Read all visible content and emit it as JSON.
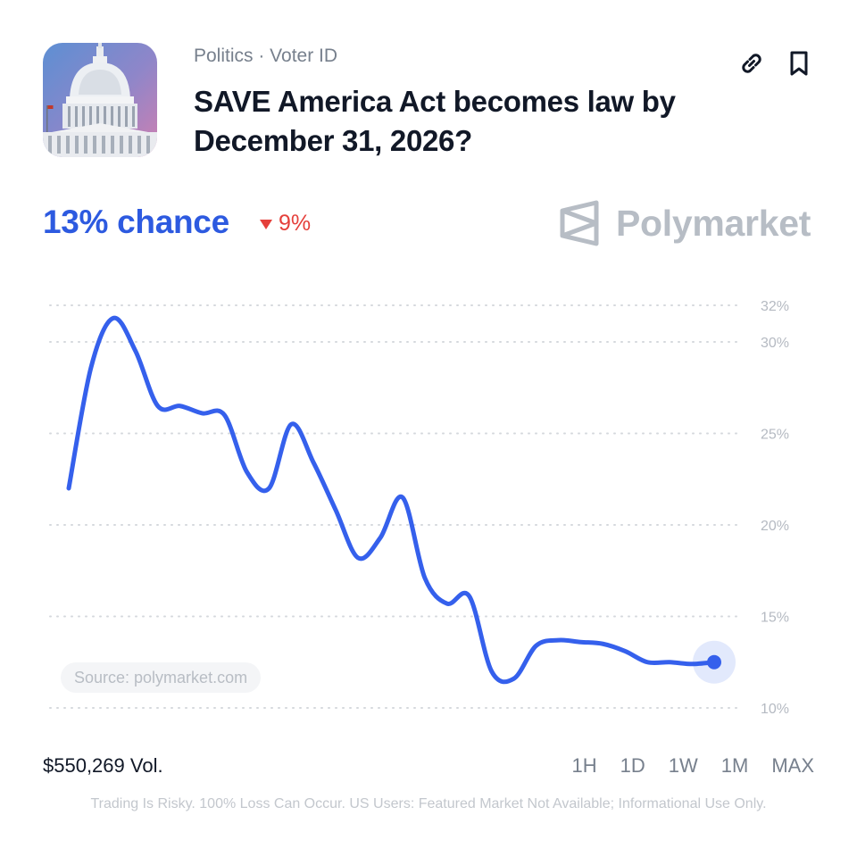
{
  "market": {
    "category": "Politics · Voter ID",
    "title": "SAVE America Act becomes law by December 31, 2026?",
    "image": "capitol-building"
  },
  "chance": {
    "label": "13% chance",
    "change": "9%",
    "direction": "down"
  },
  "brand": {
    "name": "Polymarket"
  },
  "actions": {
    "link": "link-icon",
    "bookmark": "bookmark-icon"
  },
  "source_label": "Source: polymarket.com",
  "volume": "$550,269 Vol.",
  "ranges": [
    "1H",
    "1D",
    "1W",
    "1M",
    "MAX"
  ],
  "disclaimer": "Trading Is Risky. 100% Loss Can Occur. US Users: Featured Market Not Available; Informational Use Only.",
  "colors": {
    "line": "#3560ec",
    "chance": "#2d5ae0",
    "down": "#e5403b",
    "grid": "#d5d8dd",
    "muted": "#b7bdc5"
  },
  "chart_data": {
    "type": "line",
    "grid": true,
    "ylim": [
      10,
      32
    ],
    "yticks": [
      10,
      15,
      20,
      25,
      30,
      32
    ],
    "ytick_labels": [
      "10%",
      "15%",
      "20%",
      "25%",
      "30%",
      "32%"
    ],
    "x": [
      0,
      1,
      2,
      3,
      4,
      5,
      6,
      7,
      8,
      9,
      10,
      11,
      12,
      13,
      14,
      15,
      16,
      17,
      18,
      19,
      20,
      21,
      22,
      23,
      24,
      25,
      26,
      27,
      28,
      29
    ],
    "series": [
      {
        "values": [
          22.0,
          28.6,
          31.3,
          29.5,
          26.5,
          26.5,
          26.1,
          26.0,
          22.9,
          22.0,
          25.5,
          23.4,
          20.8,
          18.2,
          19.3,
          21.5,
          17.1,
          15.7,
          16.1,
          12.0,
          11.6,
          13.4,
          13.7,
          13.6,
          13.5,
          13.1,
          12.5,
          12.5,
          12.4,
          12.5
        ]
      }
    ]
  }
}
